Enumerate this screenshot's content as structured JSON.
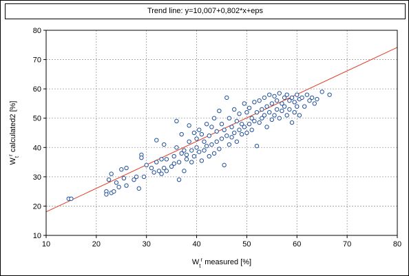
{
  "chart_data": {
    "type": "scatter",
    "title": "Trend line: y=10,007+0,802*x+eps",
    "xlabel": {
      "main": "W",
      "sub": "t",
      "sup": "r",
      "rest": " measured [%]"
    },
    "ylabel": {
      "main": "W",
      "sub": "t",
      "sup": "r",
      "rest": " calculated2 [%]"
    },
    "xlim": [
      10,
      80
    ],
    "ylim": [
      10,
      80
    ],
    "x_ticks": [
      "10",
      "20",
      "30",
      "40",
      "50",
      "60",
      "70",
      "80"
    ],
    "y_ticks": [
      "10",
      "20",
      "30",
      "40",
      "50",
      "60",
      "70",
      "80"
    ],
    "grid": true,
    "trend": {
      "intercept": 10.007,
      "slope": 0.802
    },
    "colors": {
      "points": "#1f4f9c",
      "trend": "#e03a1e",
      "grid": "#9a9a9a"
    },
    "points": [
      [
        14.5,
        22.5
      ],
      [
        15.0,
        22.5
      ],
      [
        22.0,
        25.0
      ],
      [
        22.0,
        24.0
      ],
      [
        22.5,
        29.0
      ],
      [
        23.0,
        31.0
      ],
      [
        23.0,
        24.5
      ],
      [
        23.5,
        25.0
      ],
      [
        24.0,
        28.0
      ],
      [
        24.5,
        26.5
      ],
      [
        25.0,
        32.5
      ],
      [
        25.5,
        29.5
      ],
      [
        26.0,
        33.0
      ],
      [
        26.0,
        27.0
      ],
      [
        27.5,
        29.0
      ],
      [
        28.0,
        30.0
      ],
      [
        28.5,
        26.0
      ],
      [
        29.0,
        37.5
      ],
      [
        29.0,
        36.5
      ],
      [
        29.5,
        30.0
      ],
      [
        30.0,
        34.0
      ],
      [
        31.0,
        33.0
      ],
      [
        31.5,
        31.5
      ],
      [
        32.0,
        35.0
      ],
      [
        32.0,
        42.5
      ],
      [
        32.5,
        32.0
      ],
      [
        33.0,
        31.0
      ],
      [
        33.0,
        36.0
      ],
      [
        33.5,
        41.0
      ],
      [
        33.5,
        33.0
      ],
      [
        34.0,
        32.0
      ],
      [
        34.0,
        36.0
      ],
      [
        35.0,
        33.5
      ],
      [
        35.5,
        37.0
      ],
      [
        35.5,
        34.5
      ],
      [
        36.0,
        40.0
      ],
      [
        36.0,
        49.0
      ],
      [
        36.5,
        35.0
      ],
      [
        36.5,
        29.0
      ],
      [
        37.0,
        44.5
      ],
      [
        37.0,
        38.0
      ],
      [
        37.5,
        39.0
      ],
      [
        37.5,
        32.0
      ],
      [
        38.0,
        37.5
      ],
      [
        38.0,
        36.0
      ],
      [
        38.5,
        42.0
      ],
      [
        38.5,
        47.5
      ],
      [
        39.0,
        35.0
      ],
      [
        39.0,
        39.0
      ],
      [
        39.5,
        45.0
      ],
      [
        39.5,
        37.0
      ],
      [
        40.0,
        43.0
      ],
      [
        40.0,
        40.0
      ],
      [
        40.5,
        46.0
      ],
      [
        40.5,
        38.5
      ],
      [
        41.0,
        44.5
      ],
      [
        41.0,
        35.5
      ],
      [
        41.5,
        42.0
      ],
      [
        41.5,
        39.0
      ],
      [
        42.0,
        48.0
      ],
      [
        42.0,
        40.5
      ],
      [
        42.5,
        44.0
      ],
      [
        42.5,
        37.0
      ],
      [
        43.0,
        47.0
      ],
      [
        43.0,
        41.0
      ],
      [
        43.5,
        50.0
      ],
      [
        43.5,
        38.0
      ],
      [
        44.0,
        45.5
      ],
      [
        44.0,
        42.0
      ],
      [
        44.5,
        52.5
      ],
      [
        44.5,
        39.5
      ],
      [
        45.0,
        48.0
      ],
      [
        45.0,
        43.0
      ],
      [
        45.5,
        46.0
      ],
      [
        45.5,
        34.0
      ],
      [
        46.0,
        57.0
      ],
      [
        46.0,
        44.0
      ],
      [
        46.5,
        50.0
      ],
      [
        46.5,
        41.0
      ],
      [
        47.0,
        47.0
      ],
      [
        47.0,
        43.5
      ],
      [
        47.5,
        53.0
      ],
      [
        47.5,
        45.0
      ],
      [
        48.0,
        49.0
      ],
      [
        48.0,
        42.0
      ],
      [
        48.5,
        51.5
      ],
      [
        48.5,
        46.0
      ],
      [
        49.0,
        48.0
      ],
      [
        49.0,
        44.5
      ],
      [
        49.5,
        55.0
      ],
      [
        49.5,
        47.0
      ],
      [
        50.0,
        52.0
      ],
      [
        50.0,
        45.0
      ],
      [
        50.5,
        53.5
      ],
      [
        50.5,
        48.0
      ],
      [
        51.0,
        50.0
      ],
      [
        51.0,
        46.0
      ],
      [
        51.5,
        55.5
      ],
      [
        51.5,
        49.0
      ],
      [
        52.0,
        52.0
      ],
      [
        52.0,
        40.5
      ],
      [
        52.5,
        56.0
      ],
      [
        52.5,
        48.5
      ],
      [
        53.0,
        53.0
      ],
      [
        53.0,
        50.0
      ],
      [
        53.5,
        57.0
      ],
      [
        53.5,
        51.0
      ],
      [
        54.0,
        54.0
      ],
      [
        54.0,
        47.0
      ],
      [
        54.5,
        58.0
      ],
      [
        54.5,
        52.0
      ],
      [
        55.0,
        55.0
      ],
      [
        55.0,
        49.5
      ],
      [
        55.5,
        57.5
      ],
      [
        55.5,
        51.0
      ],
      [
        56.0,
        56.0
      ],
      [
        56.0,
        53.0
      ],
      [
        56.5,
        58.5
      ],
      [
        56.5,
        50.0
      ],
      [
        57.0,
        55.0
      ],
      [
        57.0,
        52.5
      ],
      [
        57.5,
        57.0
      ],
      [
        57.5,
        54.0
      ],
      [
        58.0,
        58.0
      ],
      [
        58.0,
        51.0
      ],
      [
        58.5,
        56.0
      ],
      [
        58.5,
        53.0
      ],
      [
        59.0,
        57.0
      ],
      [
        59.0,
        48.5
      ],
      [
        59.5,
        55.5
      ],
      [
        59.5,
        52.0
      ],
      [
        60.0,
        58.0
      ],
      [
        60.0,
        54.0
      ],
      [
        60.5,
        56.5
      ],
      [
        60.5,
        51.0
      ],
      [
        61.0,
        57.0
      ],
      [
        61.5,
        54.0
      ],
      [
        62.0,
        58.0
      ],
      [
        62.5,
        56.0
      ],
      [
        63.0,
        57.0
      ],
      [
        63.5,
        55.0
      ],
      [
        64.0,
        56.5
      ],
      [
        65.0,
        59.0
      ],
      [
        66.5,
        58.0
      ]
    ]
  }
}
